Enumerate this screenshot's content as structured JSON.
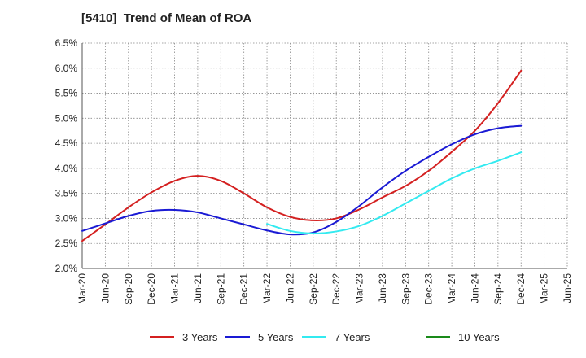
{
  "chart_data": {
    "type": "line",
    "title": "[5410]  Trend of Mean of ROA",
    "xlabel": "",
    "ylabel": "",
    "x_categories": [
      "Mar-20",
      "Jun-20",
      "Sep-20",
      "Dec-20",
      "Mar-21",
      "Jun-21",
      "Sep-21",
      "Dec-21",
      "Mar-22",
      "Jun-22",
      "Sep-22",
      "Dec-22",
      "Mar-23",
      "Jun-23",
      "Sep-23",
      "Dec-23",
      "Mar-24",
      "Jun-24",
      "Sep-24",
      "Dec-24",
      "Mar-25",
      "Jun-25"
    ],
    "y_ticks": [
      "2.0%",
      "2.5%",
      "3.0%",
      "3.5%",
      "4.0%",
      "4.5%",
      "5.0%",
      "5.5%",
      "6.0%",
      "6.5%"
    ],
    "ylim": [
      2.0,
      6.5
    ],
    "grid": true,
    "legend_position": "bottom",
    "series": [
      {
        "name": "3 Years",
        "color": "#d42020",
        "values": [
          2.55,
          2.88,
          3.22,
          3.52,
          3.75,
          3.85,
          3.75,
          3.5,
          3.22,
          3.03,
          2.96,
          3.0,
          3.18,
          3.42,
          3.65,
          3.95,
          4.33,
          4.75,
          5.3,
          5.95
        ]
      },
      {
        "name": "5 Years",
        "color": "#1a1ad4",
        "values": [
          2.75,
          2.9,
          3.05,
          3.15,
          3.17,
          3.12,
          3.0,
          2.88,
          2.76,
          2.68,
          2.72,
          2.93,
          3.25,
          3.62,
          3.95,
          4.23,
          4.48,
          4.68,
          4.8,
          4.85
        ]
      },
      {
        "name": "7 Years",
        "color": "#33eaf0",
        "values": [
          null,
          null,
          null,
          null,
          null,
          null,
          null,
          null,
          2.89,
          2.75,
          2.7,
          2.74,
          2.85,
          3.05,
          3.3,
          3.55,
          3.8,
          4.0,
          4.15,
          4.32
        ]
      },
      {
        "name": "10 Years",
        "color": "#1a8a1a",
        "values": []
      }
    ]
  }
}
